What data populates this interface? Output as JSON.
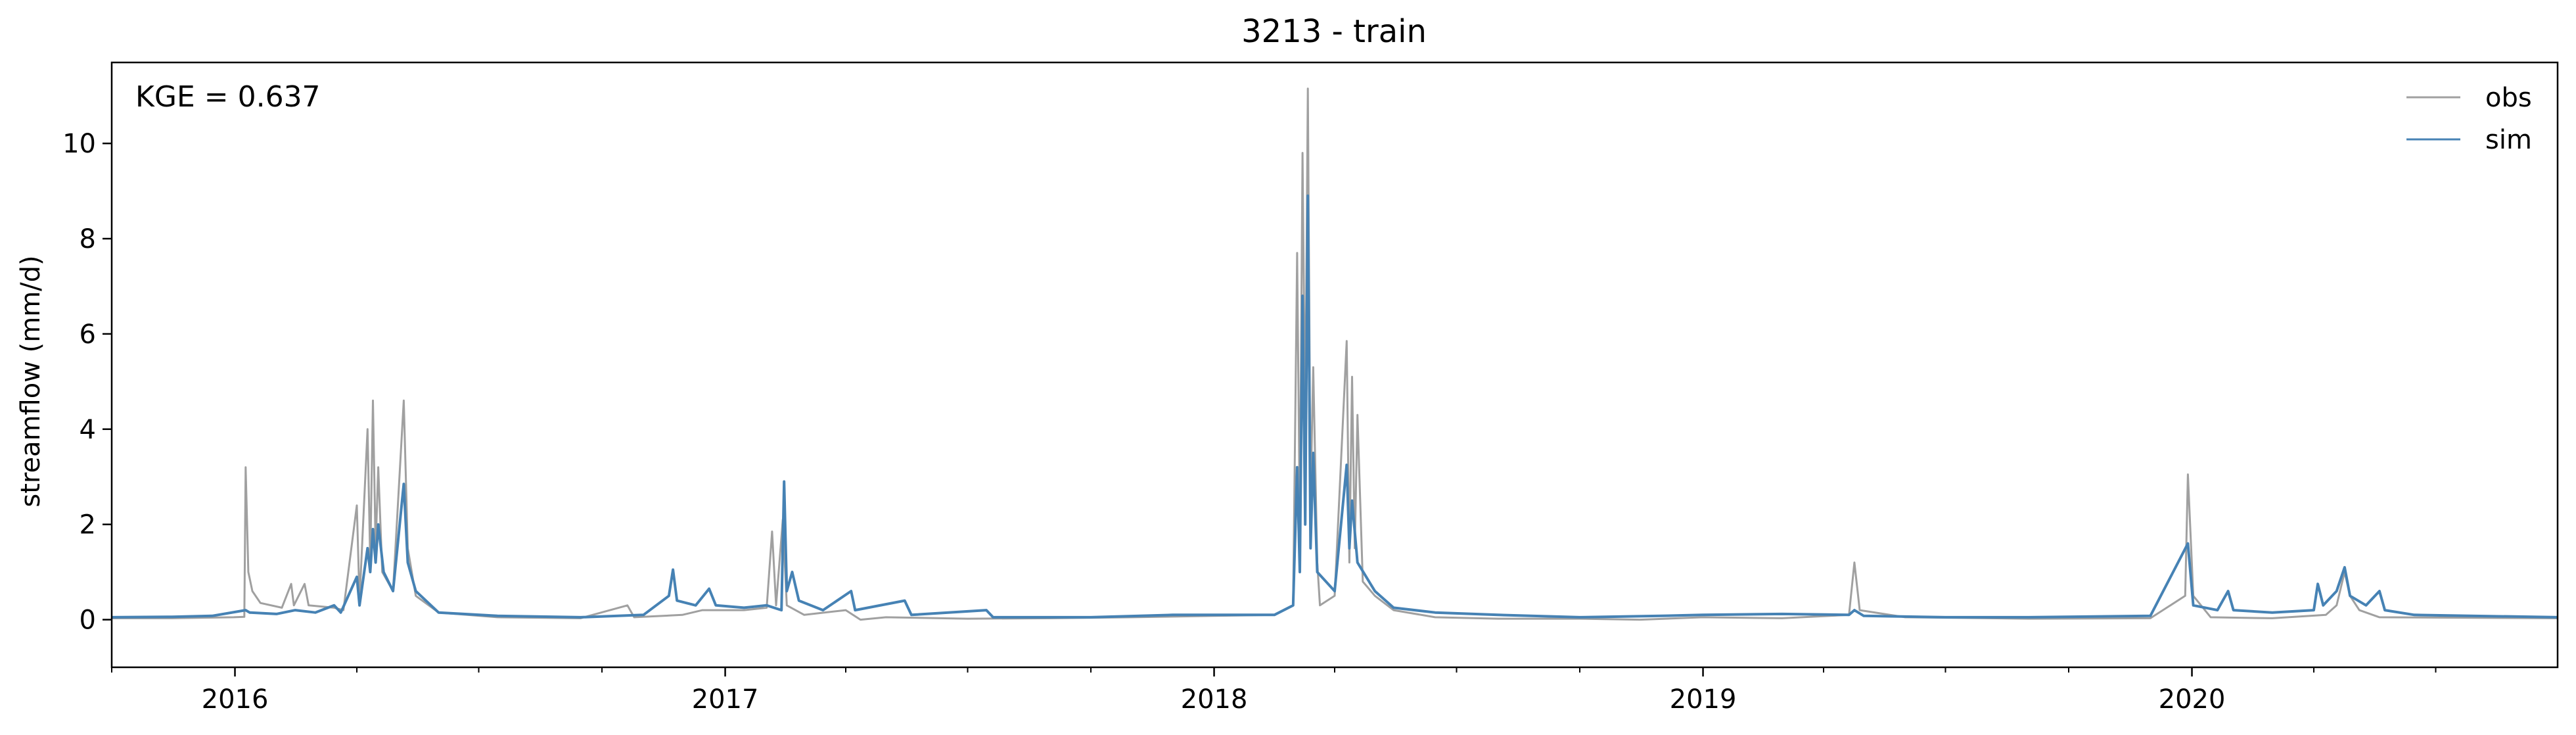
{
  "chart_data": {
    "type": "line",
    "title": "3213 - train",
    "xlabel": "",
    "ylabel": "streamflow (mm/d)",
    "annotation": "KGE = 0.637",
    "legend_position": "top-right",
    "grid": false,
    "xlim": [
      "2015-10-01",
      "2020-09-30"
    ],
    "ylim": [
      -1,
      11.7
    ],
    "x_major_ticks": [
      "2016-01-01",
      "2017-01-01",
      "2018-01-01",
      "2019-01-01",
      "2020-01-01"
    ],
    "x_tick_labels": [
      "2016",
      "2017",
      "2018",
      "2019",
      "2020"
    ],
    "y_ticks": [
      0,
      2,
      4,
      6,
      8,
      10
    ],
    "y_tick_labels": [
      "0",
      "2",
      "4",
      "6",
      "8",
      "10"
    ],
    "series": [
      {
        "name": "obs",
        "color": "#a0a0a0",
        "points": [
          [
            "2015-10-01",
            0.03
          ],
          [
            "2015-11-15",
            0.03
          ],
          [
            "2015-12-31",
            0.05
          ],
          [
            "2016-01-08",
            0.06
          ],
          [
            "2016-01-09",
            3.2
          ],
          [
            "2016-01-11",
            1.0
          ],
          [
            "2016-01-14",
            0.6
          ],
          [
            "2016-01-20",
            0.35
          ],
          [
            "2016-02-05",
            0.25
          ],
          [
            "2016-02-12",
            0.75
          ],
          [
            "2016-02-14",
            0.3
          ],
          [
            "2016-02-22",
            0.75
          ],
          [
            "2016-02-25",
            0.3
          ],
          [
            "2016-03-15",
            0.25
          ],
          [
            "2016-03-22",
            0.2
          ],
          [
            "2016-04-01",
            2.4
          ],
          [
            "2016-04-03",
            0.4
          ],
          [
            "2016-04-09",
            4.0
          ],
          [
            "2016-04-11",
            1.2
          ],
          [
            "2016-04-13",
            4.6
          ],
          [
            "2016-04-15",
            1.5
          ],
          [
            "2016-04-17",
            3.2
          ],
          [
            "2016-04-20",
            1.0
          ],
          [
            "2016-04-28",
            0.6
          ],
          [
            "2016-05-06",
            4.6
          ],
          [
            "2016-05-09",
            1.5
          ],
          [
            "2016-05-15",
            0.5
          ],
          [
            "2016-06-01",
            0.15
          ],
          [
            "2016-07-15",
            0.05
          ],
          [
            "2016-09-15",
            0.03
          ],
          [
            "2016-10-20",
            0.3
          ],
          [
            "2016-10-25",
            0.05
          ],
          [
            "2016-11-30",
            0.1
          ],
          [
            "2016-12-15",
            0.2
          ],
          [
            "2017-01-15",
            0.2
          ],
          [
            "2017-02-01",
            0.25
          ],
          [
            "2017-02-05",
            1.85
          ],
          [
            "2017-02-08",
            0.3
          ],
          [
            "2017-02-13",
            2.1
          ],
          [
            "2017-02-16",
            0.3
          ],
          [
            "2017-03-01",
            0.1
          ],
          [
            "2017-04-01",
            0.2
          ],
          [
            "2017-04-12",
            0.0
          ],
          [
            "2017-05-01",
            0.05
          ],
          [
            "2017-07-01",
            0.02
          ],
          [
            "2017-09-01",
            0.03
          ],
          [
            "2017-11-01",
            0.05
          ],
          [
            "2018-01-01",
            0.08
          ],
          [
            "2018-02-15",
            0.1
          ],
          [
            "2018-03-01",
            0.3
          ],
          [
            "2018-03-04",
            7.7
          ],
          [
            "2018-03-06",
            2.0
          ],
          [
            "2018-03-08",
            9.8
          ],
          [
            "2018-03-10",
            4.0
          ],
          [
            "2018-03-12",
            11.15
          ],
          [
            "2018-03-14",
            2.5
          ],
          [
            "2018-03-16",
            5.3
          ],
          [
            "2018-03-19",
            1.2
          ],
          [
            "2018-03-21",
            0.3
          ],
          [
            "2018-04-01",
            0.5
          ],
          [
            "2018-04-10",
            5.85
          ],
          [
            "2018-04-12",
            1.2
          ],
          [
            "2018-04-14",
            5.1
          ],
          [
            "2018-04-16",
            1.5
          ],
          [
            "2018-04-18",
            4.3
          ],
          [
            "2018-04-22",
            0.8
          ],
          [
            "2018-05-01",
            0.5
          ],
          [
            "2018-05-15",
            0.2
          ],
          [
            "2018-06-15",
            0.05
          ],
          [
            "2018-08-01",
            0.02
          ],
          [
            "2018-10-01",
            0.02
          ],
          [
            "2018-11-15",
            0.0
          ],
          [
            "2019-01-01",
            0.05
          ],
          [
            "2019-03-01",
            0.03
          ],
          [
            "2019-04-20",
            0.1
          ],
          [
            "2019-04-24",
            1.2
          ],
          [
            "2019-04-28",
            0.2
          ],
          [
            "2019-06-01",
            0.05
          ],
          [
            "2019-09-01",
            0.02
          ],
          [
            "2019-12-01",
            0.03
          ],
          [
            "2019-12-27",
            0.5
          ],
          [
            "2019-12-29",
            3.05
          ],
          [
            "2020-01-02",
            0.5
          ],
          [
            "2020-01-15",
            0.05
          ],
          [
            "2020-03-01",
            0.03
          ],
          [
            "2020-04-10",
            0.1
          ],
          [
            "2020-04-18",
            0.3
          ],
          [
            "2020-04-24",
            1.0
          ],
          [
            "2020-04-28",
            0.5
          ],
          [
            "2020-05-05",
            0.2
          ],
          [
            "2020-05-20",
            0.05
          ],
          [
            "2020-09-30",
            0.03
          ]
        ]
      },
      {
        "name": "sim",
        "color": "#4682b4",
        "points": [
          [
            "2015-10-01",
            0.05
          ],
          [
            "2015-11-15",
            0.06
          ],
          [
            "2015-12-15",
            0.08
          ],
          [
            "2016-01-09",
            0.2
          ],
          [
            "2016-01-12",
            0.15
          ],
          [
            "2016-02-01",
            0.12
          ],
          [
            "2016-02-15",
            0.2
          ],
          [
            "2016-03-01",
            0.15
          ],
          [
            "2016-03-15",
            0.3
          ],
          [
            "2016-03-20",
            0.15
          ],
          [
            "2016-04-01",
            0.9
          ],
          [
            "2016-04-03",
            0.3
          ],
          [
            "2016-04-09",
            1.5
          ],
          [
            "2016-04-11",
            1.0
          ],
          [
            "2016-04-13",
            1.9
          ],
          [
            "2016-04-15",
            1.2
          ],
          [
            "2016-04-17",
            2.0
          ],
          [
            "2016-04-21",
            1.0
          ],
          [
            "2016-04-28",
            0.6
          ],
          [
            "2016-05-06",
            2.85
          ],
          [
            "2016-05-09",
            1.2
          ],
          [
            "2016-05-15",
            0.6
          ],
          [
            "2016-06-01",
            0.15
          ],
          [
            "2016-07-15",
            0.08
          ],
          [
            "2016-09-15",
            0.05
          ],
          [
            "2016-11-01",
            0.1
          ],
          [
            "2016-11-20",
            0.5
          ],
          [
            "2016-11-23",
            1.05
          ],
          [
            "2016-11-26",
            0.4
          ],
          [
            "2016-12-10",
            0.3
          ],
          [
            "2016-12-20",
            0.65
          ],
          [
            "2016-12-25",
            0.3
          ],
          [
            "2017-01-15",
            0.25
          ],
          [
            "2017-02-01",
            0.3
          ],
          [
            "2017-02-12",
            0.2
          ],
          [
            "2017-02-14",
            2.9
          ],
          [
            "2017-02-16",
            0.6
          ],
          [
            "2017-02-20",
            1.0
          ],
          [
            "2017-02-25",
            0.4
          ],
          [
            "2017-03-15",
            0.2
          ],
          [
            "2017-04-05",
            0.6
          ],
          [
            "2017-04-08",
            0.2
          ],
          [
            "2017-05-15",
            0.4
          ],
          [
            "2017-05-20",
            0.1
          ],
          [
            "2017-07-15",
            0.2
          ],
          [
            "2017-07-20",
            0.05
          ],
          [
            "2017-10-01",
            0.05
          ],
          [
            "2017-12-01",
            0.1
          ],
          [
            "2018-02-15",
            0.1
          ],
          [
            "2018-03-01",
            0.3
          ],
          [
            "2018-03-04",
            3.2
          ],
          [
            "2018-03-06",
            1.0
          ],
          [
            "2018-03-08",
            6.8
          ],
          [
            "2018-03-10",
            2.0
          ],
          [
            "2018-03-12",
            8.9
          ],
          [
            "2018-03-14",
            1.5
          ],
          [
            "2018-03-16",
            3.5
          ],
          [
            "2018-03-19",
            1.0
          ],
          [
            "2018-04-01",
            0.6
          ],
          [
            "2018-04-10",
            3.25
          ],
          [
            "2018-04-12",
            1.5
          ],
          [
            "2018-04-14",
            2.5
          ],
          [
            "2018-04-18",
            1.2
          ],
          [
            "2018-05-01",
            0.6
          ],
          [
            "2018-05-15",
            0.25
          ],
          [
            "2018-06-15",
            0.15
          ],
          [
            "2018-08-01",
            0.1
          ],
          [
            "2018-10-01",
            0.05
          ],
          [
            "2018-12-01",
            0.08
          ],
          [
            "2019-01-01",
            0.1
          ],
          [
            "2019-03-01",
            0.12
          ],
          [
            "2019-04-20",
            0.1
          ],
          [
            "2019-04-24",
            0.2
          ],
          [
            "2019-05-01",
            0.08
          ],
          [
            "2019-07-01",
            0.05
          ],
          [
            "2019-09-01",
            0.05
          ],
          [
            "2019-12-01",
            0.08
          ],
          [
            "2019-12-29",
            1.6
          ],
          [
            "2020-01-02",
            0.3
          ],
          [
            "2020-01-20",
            0.2
          ],
          [
            "2020-01-28",
            0.6
          ],
          [
            "2020-02-01",
            0.2
          ],
          [
            "2020-03-01",
            0.15
          ],
          [
            "2020-04-01",
            0.2
          ],
          [
            "2020-04-04",
            0.75
          ],
          [
            "2020-04-08",
            0.3
          ],
          [
            "2020-04-18",
            0.6
          ],
          [
            "2020-04-24",
            1.1
          ],
          [
            "2020-04-28",
            0.5
          ],
          [
            "2020-05-10",
            0.3
          ],
          [
            "2020-05-20",
            0.6
          ],
          [
            "2020-05-24",
            0.2
          ],
          [
            "2020-06-15",
            0.1
          ],
          [
            "2020-09-30",
            0.05
          ]
        ]
      }
    ]
  }
}
